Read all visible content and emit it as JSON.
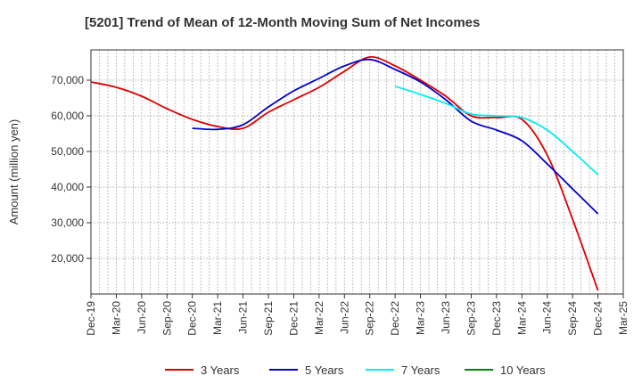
{
  "chart_data": {
    "type": "line",
    "title": "[5201]  Trend of Mean of 12-Month Moving Sum of Net Incomes",
    "xlabel": "",
    "ylabel": "Amount (million yen)",
    "ylim": [
      10000,
      78500
    ],
    "y_ticks": [
      20000,
      30000,
      40000,
      50000,
      60000,
      70000
    ],
    "y_tick_labels": [
      "20,000",
      "30,000",
      "40,000",
      "50,000",
      "60,000",
      "70,000"
    ],
    "x_tick_labels": [
      "Dec-19",
      "Mar-20",
      "Jun-20",
      "Sep-20",
      "Dec-20",
      "Mar-21",
      "Jun-21",
      "Sep-21",
      "Dec-21",
      "Mar-22",
      "Jun-22",
      "Sep-22",
      "Dec-22",
      "Mar-23",
      "Jun-23",
      "Sep-23",
      "Dec-23",
      "Mar-24",
      "Jun-24",
      "Sep-24",
      "Dec-24",
      "Mar-25"
    ],
    "grid": true,
    "legend_position": "bottom",
    "series": [
      {
        "name": "3 Years",
        "color": "#dd0000",
        "points": [
          [
            "Dec-19",
            69500
          ],
          [
            "Mar-20",
            68000
          ],
          [
            "Jun-20",
            65500
          ],
          [
            "Sep-20",
            62000
          ],
          [
            "Dec-20",
            59000
          ],
          [
            "Mar-21",
            57000
          ],
          [
            "Jun-21",
            56500
          ],
          [
            "Sep-21",
            61000
          ],
          [
            "Dec-21",
            64500
          ],
          [
            "Mar-22",
            68000
          ],
          [
            "Jun-22",
            72500
          ],
          [
            "Sep-22",
            76500
          ],
          [
            "Dec-22",
            74000
          ],
          [
            "Mar-23",
            70000
          ],
          [
            "Jun-23",
            65500
          ],
          [
            "Sep-23",
            60000
          ],
          [
            "Dec-23",
            59500
          ],
          [
            "Mar-24",
            59000
          ],
          [
            "Jun-24",
            49000
          ],
          [
            "Sep-24",
            31000
          ],
          [
            "Dec-24",
            11000
          ]
        ]
      },
      {
        "name": "5 Years",
        "color": "#0000cc",
        "points": [
          [
            "Dec-20",
            56500
          ],
          [
            "Mar-21",
            56200
          ],
          [
            "Jun-21",
            57500
          ],
          [
            "Sep-21",
            62500
          ],
          [
            "Dec-21",
            67000
          ],
          [
            "Mar-22",
            70500
          ],
          [
            "Jun-22",
            74000
          ],
          [
            "Sep-22",
            75800
          ],
          [
            "Dec-22",
            73000
          ],
          [
            "Mar-23",
            69500
          ],
          [
            "Jun-23",
            64500
          ],
          [
            "Sep-23",
            58500
          ],
          [
            "Dec-23",
            56000
          ],
          [
            "Mar-24",
            53000
          ],
          [
            "Jun-24",
            46500
          ],
          [
            "Sep-24",
            39500
          ],
          [
            "Dec-24",
            32500
          ]
        ]
      },
      {
        "name": "7 Years",
        "color": "#00eeee",
        "points": [
          [
            "Dec-22",
            68300
          ],
          [
            "Mar-23",
            66000
          ],
          [
            "Jun-23",
            63500
          ],
          [
            "Sep-23",
            60500
          ],
          [
            "Dec-23",
            60000
          ],
          [
            "Mar-24",
            59500
          ],
          [
            "Jun-24",
            56000
          ],
          [
            "Sep-24",
            50000
          ],
          [
            "Dec-24",
            43500
          ]
        ]
      },
      {
        "name": "10 Years",
        "color": "#008800",
        "points": []
      }
    ]
  }
}
